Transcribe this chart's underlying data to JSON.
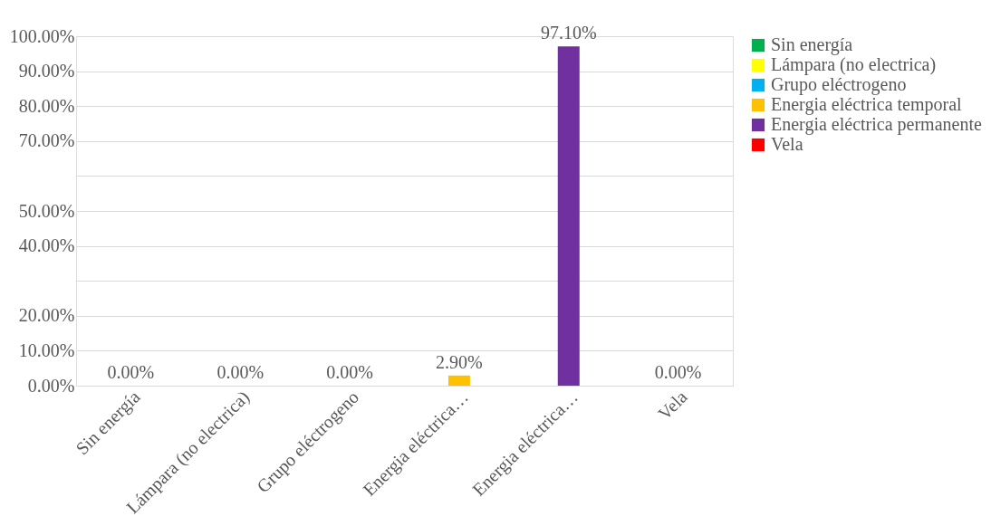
{
  "chart_data": {
    "type": "bar",
    "categories": [
      "Sin energía",
      "Lámpara (no electrica)",
      "Grupo eléctrogeno",
      "Energia eléctrica…",
      "Energia eléctrica…",
      "Vela"
    ],
    "series": [
      {
        "name": "Sin energía",
        "color": "#00b050",
        "values": [
          0,
          null,
          null,
          null,
          null,
          null
        ],
        "value_labels": [
          "0.00%",
          null,
          null,
          null,
          null,
          null
        ]
      },
      {
        "name": "Lámpara (no electrica)",
        "color": "#ffff00",
        "values": [
          null,
          0,
          null,
          null,
          null,
          null
        ],
        "value_labels": [
          null,
          "0.00%",
          null,
          null,
          null,
          null
        ]
      },
      {
        "name": "Grupo eléctrogeno",
        "color": "#00b0f0",
        "values": [
          null,
          null,
          0,
          null,
          null,
          null
        ],
        "value_labels": [
          null,
          null,
          "0.00%",
          null,
          null,
          null
        ]
      },
      {
        "name": "Energia eléctrica temporal",
        "color": "#ffc000",
        "values": [
          null,
          null,
          null,
          2.9,
          null,
          null
        ],
        "value_labels": [
          null,
          null,
          null,
          "2.90%",
          null,
          null
        ]
      },
      {
        "name": "Energia eléctrica permanente",
        "color": "#7030a0",
        "values": [
          null,
          null,
          null,
          null,
          97.1,
          null
        ],
        "value_labels": [
          null,
          null,
          null,
          null,
          "97.10%",
          null
        ]
      },
      {
        "name": "Vela",
        "color": "#ff0000",
        "values": [
          null,
          null,
          null,
          null,
          null,
          0
        ],
        "value_labels": [
          null,
          null,
          null,
          null,
          null,
          "0.00%"
        ]
      }
    ],
    "ylim": [
      0,
      100
    ],
    "yticks": [
      {
        "value": 0,
        "label": "0.00%"
      },
      {
        "value": 10,
        "label": "10.00%"
      },
      {
        "value": 20,
        "label": "20.00%"
      },
      {
        "value": 30,
        "label": null
      },
      {
        "value": 40,
        "label": "40.00%"
      },
      {
        "value": 50,
        "label": "50.00%"
      },
      {
        "value": 60,
        "label": null
      },
      {
        "value": 70,
        "label": "70.00%"
      },
      {
        "value": 80,
        "label": "80.00%"
      },
      {
        "value": 90,
        "label": "90.00%"
      },
      {
        "value": 100,
        "label": "100.00%"
      }
    ],
    "grid": "y",
    "legend": "right"
  }
}
